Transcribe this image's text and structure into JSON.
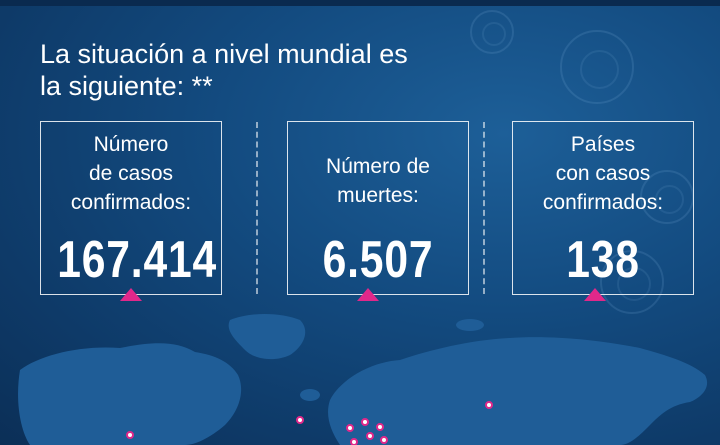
{
  "headline": "La situación a nivel mundial es\nla siguiente: **",
  "stats": [
    {
      "label": "Número\nde casos\nconfirmados:",
      "value": "167.414"
    },
    {
      "label": "Número de\nmuertes:",
      "value": "6.507"
    },
    {
      "label": "Países\ncon casos\nconfirmados:",
      "value": "138"
    }
  ],
  "colors": {
    "background": "#134b80",
    "accent": "#e0288a",
    "map": "#1f5d97",
    "text": "#ffffff"
  }
}
